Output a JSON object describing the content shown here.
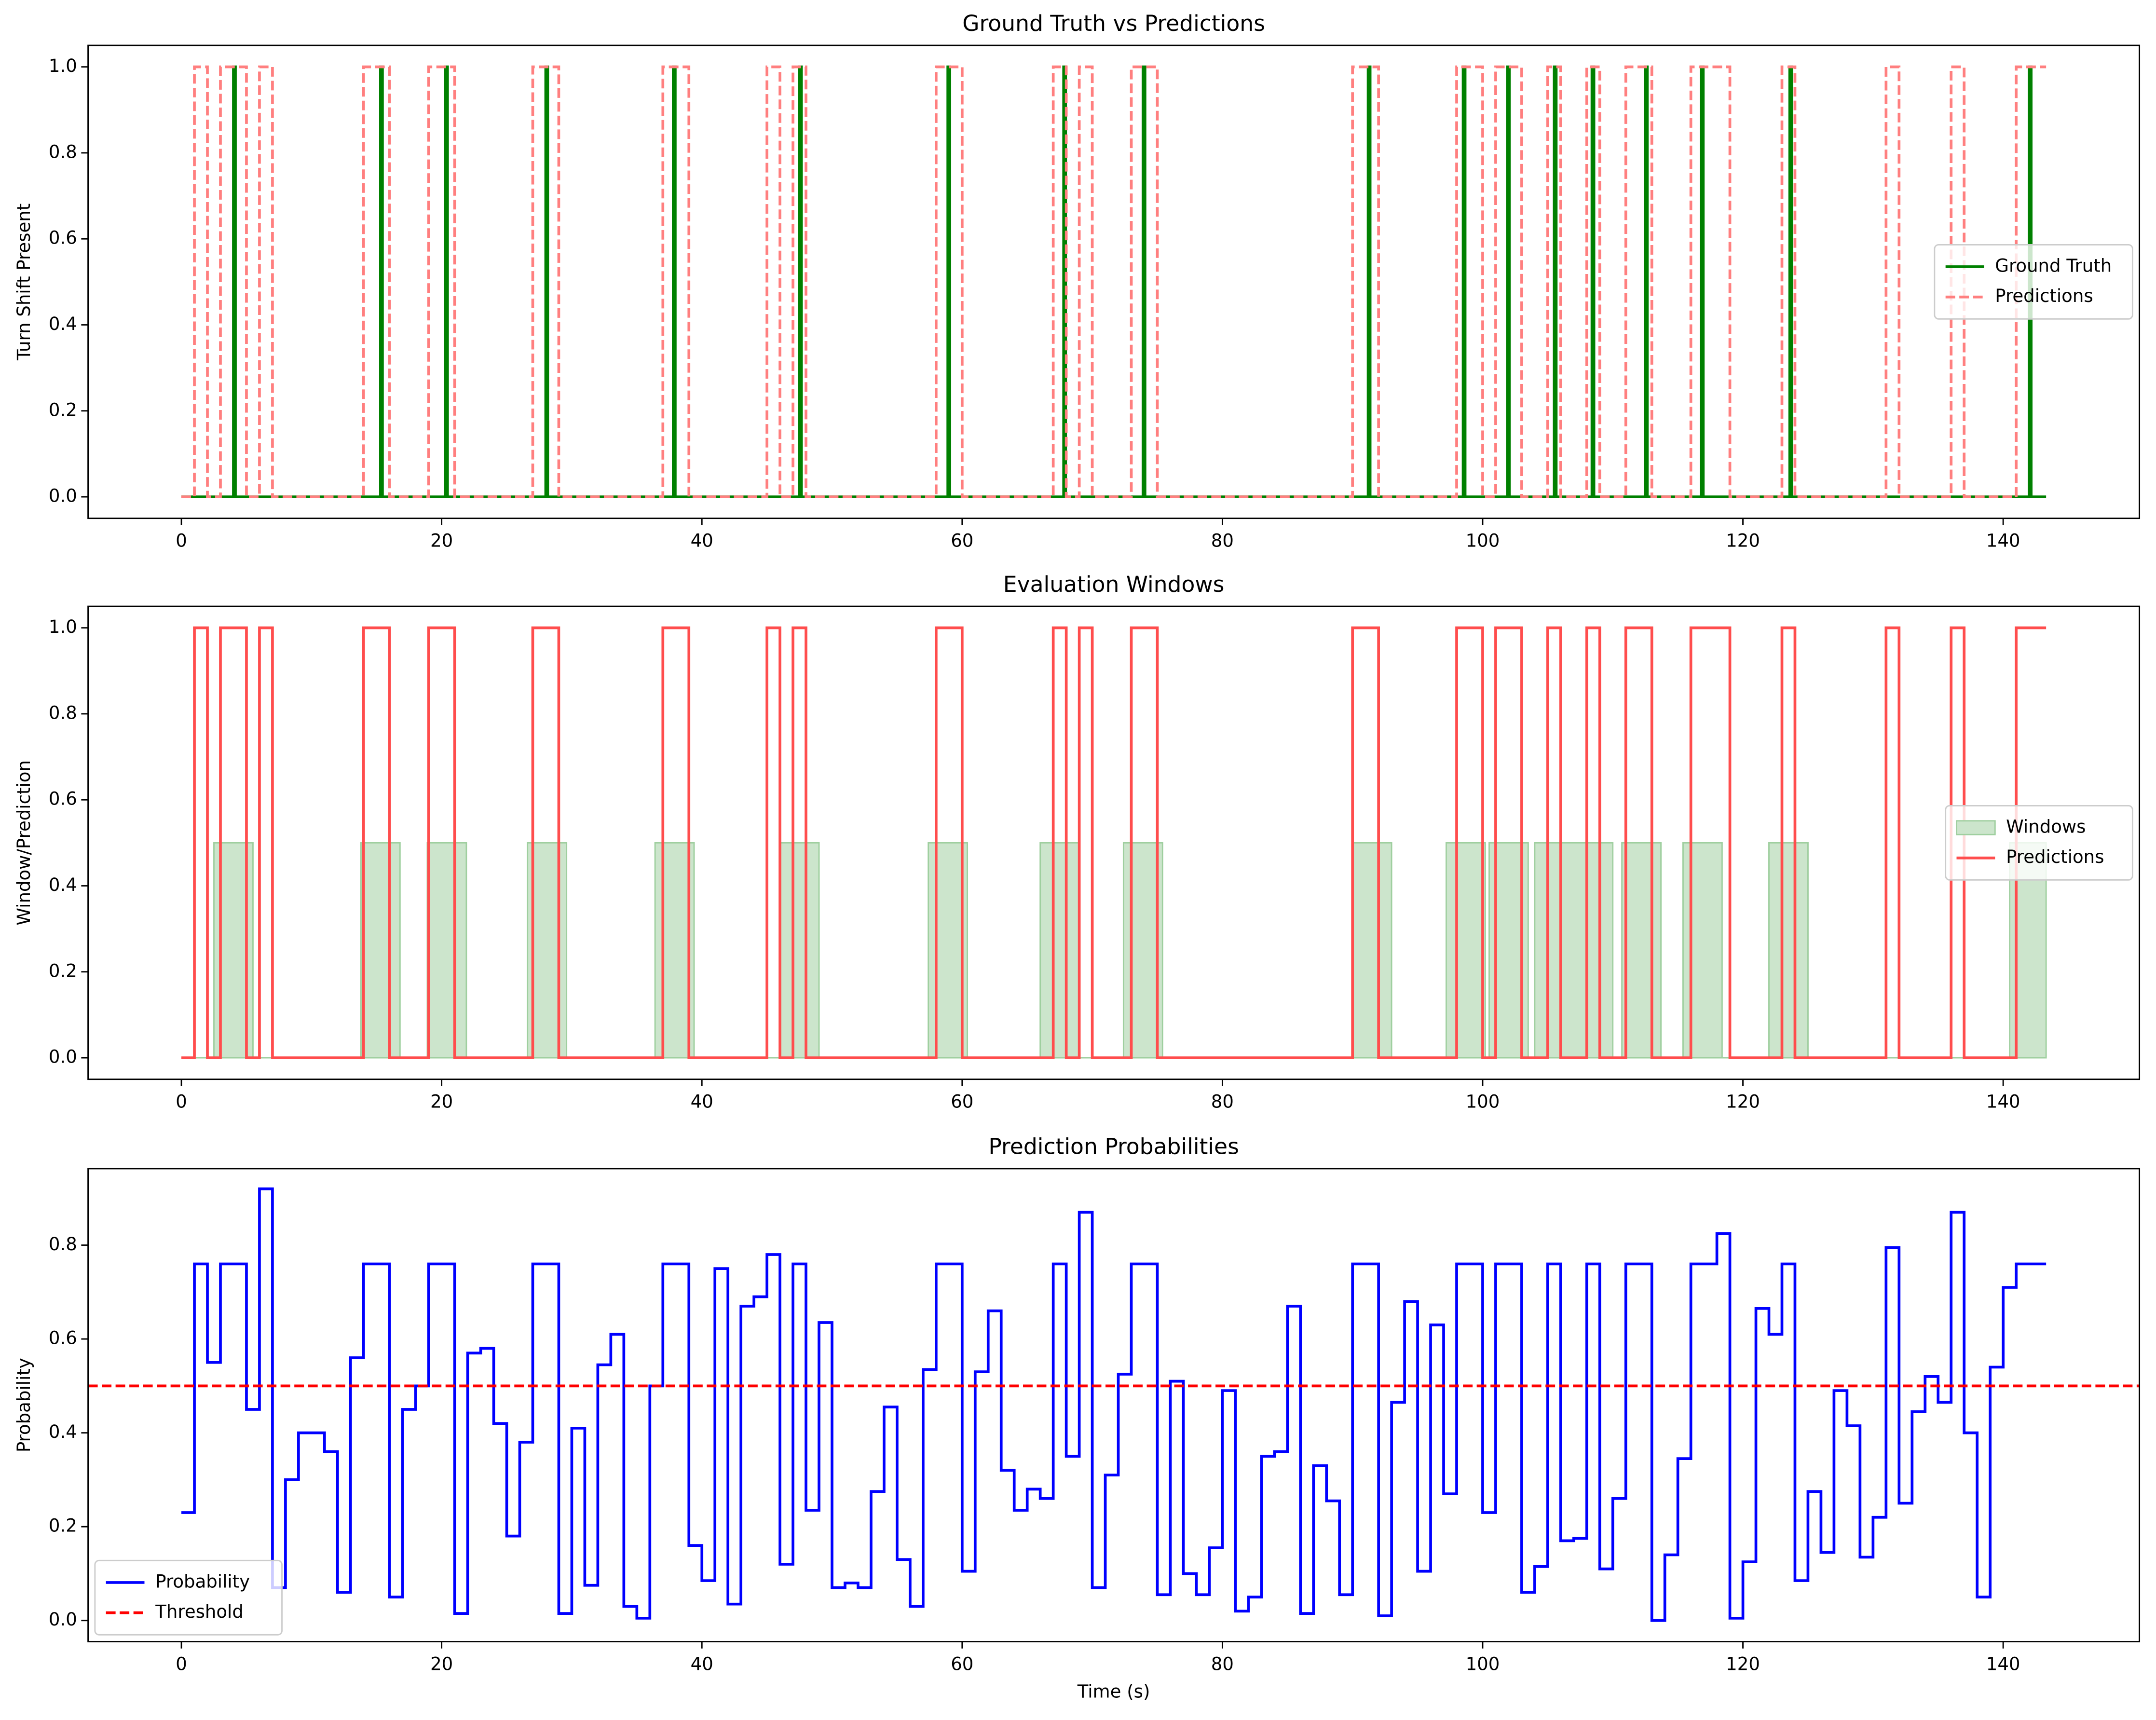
{
  "chart_data": [
    {
      "type": "line",
      "step": "post",
      "title": "Ground Truth vs Predictions",
      "ylabel": "Turn Shift Present",
      "xlim": [
        -7.17,
        150.47
      ],
      "xticks": [
        0,
        20,
        40,
        60,
        80,
        100,
        120,
        140
      ],
      "ylim": [
        -0.05,
        1.05
      ],
      "yticks": [
        {
          "value": 0,
          "label": "0.0"
        },
        0.2,
        0.4,
        0.6,
        0.8,
        {
          "value": 1,
          "label": "1.0"
        }
      ],
      "legend": "center right",
      "series": [
        {
          "name": "Ground Truth",
          "color": "#008000",
          "dash": false,
          "x": [
            0,
            4,
            4.15,
            15.3,
            15.45,
            20.3,
            20.45,
            28,
            28.15,
            37.8,
            37.95,
            47.5,
            47.65,
            58.9,
            59.05,
            67.8,
            67.95,
            73.9,
            74.05,
            91.2,
            91.35,
            98.5,
            98.65,
            101.9,
            102.05,
            105.5,
            105.65,
            108.4,
            108.55,
            112.5,
            112.65,
            116.8,
            116.95,
            123.6,
            123.75,
            142,
            142.15,
            143.3
          ],
          "values": [
            0,
            1,
            0,
            1,
            0,
            1,
            0,
            1,
            0,
            1,
            0,
            1,
            0,
            1,
            0,
            1,
            0,
            1,
            0,
            1,
            0,
            1,
            0,
            1,
            0,
            1,
            0,
            1,
            0,
            1,
            0,
            1,
            0,
            1,
            0,
            1,
            0,
            0
          ]
        },
        {
          "name": "Predictions",
          "color": "#ff7f7f",
          "dash": true,
          "x": [
            0,
            1,
            2,
            3,
            5,
            6,
            7,
            14,
            16,
            19,
            21,
            27,
            29,
            37,
            39,
            45,
            46,
            47,
            48,
            58,
            60,
            67,
            68,
            69,
            70,
            73,
            75,
            90,
            92,
            98,
            100,
            101,
            103,
            105,
            106,
            108,
            109,
            111,
            113,
            116,
            119,
            123,
            124,
            131,
            132,
            136,
            137,
            141,
            143.3
          ],
          "values": [
            0,
            1,
            0,
            1,
            0,
            1,
            0,
            1,
            0,
            1,
            0,
            1,
            0,
            1,
            0,
            1,
            0,
            1,
            0,
            1,
            0,
            1,
            0,
            1,
            0,
            1,
            0,
            1,
            0,
            1,
            0,
            1,
            0,
            1,
            0,
            1,
            0,
            1,
            0,
            1,
            0,
            1,
            0,
            1,
            0,
            1,
            0,
            1,
            1
          ]
        }
      ]
    },
    {
      "type": "line",
      "step": "post",
      "title": "Evaluation Windows",
      "ylabel": "Window/Prediction",
      "xlim": [
        -7.17,
        150.47
      ],
      "xticks": [
        0,
        20,
        40,
        60,
        80,
        100,
        120,
        140
      ],
      "ylim": [
        -0.05,
        1.05
      ],
      "yticks": [
        {
          "value": 0,
          "label": "0.0"
        },
        0.2,
        0.4,
        0.6,
        0.8,
        {
          "value": 1,
          "label": "1.0"
        }
      ],
      "legend": "center right",
      "series": [
        {
          "name": "Windows",
          "color": "#cce5cc",
          "fill": true,
          "x": [
            0,
            2.5,
            5.5,
            13.8,
            16.8,
            18.9,
            21.9,
            26.6,
            29.6,
            36.4,
            39.4,
            46,
            49,
            57.4,
            60.4,
            66,
            69,
            72.4,
            75.4,
            90,
            93,
            97.2,
            100.2,
            100.5,
            103.5,
            104,
            110,
            110.7,
            113.7,
            115.4,
            118.4,
            122,
            125,
            140.5,
            143.3
          ],
          "values": [
            0,
            0.5,
            0,
            0.5,
            0,
            0.5,
            0,
            0.5,
            0,
            0.5,
            0,
            0.5,
            0,
            0.5,
            0,
            0.5,
            0,
            0.5,
            0,
            0.5,
            0,
            0.5,
            0,
            0.5,
            0,
            0.5,
            0,
            0.5,
            0,
            0.5,
            0,
            0.5,
            0,
            0.5,
            0
          ]
        },
        {
          "name": "Predictions",
          "color": "#ff4d4d",
          "dash": false,
          "x": [
            0,
            1,
            2,
            3,
            5,
            6,
            7,
            14,
            16,
            19,
            21,
            27,
            29,
            37,
            39,
            45,
            46,
            47,
            48,
            58,
            60,
            67,
            68,
            69,
            70,
            73,
            75,
            90,
            92,
            98,
            100,
            101,
            103,
            105,
            106,
            108,
            109,
            111,
            113,
            116,
            119,
            123,
            124,
            131,
            132,
            136,
            137,
            141,
            143.3
          ],
          "values": [
            0,
            1,
            0,
            1,
            0,
            1,
            0,
            1,
            0,
            1,
            0,
            1,
            0,
            1,
            0,
            1,
            0,
            1,
            0,
            1,
            0,
            1,
            0,
            1,
            0,
            1,
            0,
            1,
            0,
            1,
            0,
            1,
            0,
            1,
            0,
            1,
            0,
            1,
            0,
            1,
            0,
            1,
            0,
            1,
            0,
            1,
            0,
            1,
            1
          ]
        }
      ]
    },
    {
      "type": "line",
      "step": "post",
      "title": "Prediction Probabilities",
      "ylabel": "Probability",
      "xlabel": "Time (s)",
      "xlim": [
        -7.17,
        150.47
      ],
      "xticks": [
        0,
        20,
        40,
        60,
        80,
        100,
        120,
        140
      ],
      "ylim": [
        -0.045,
        0.963
      ],
      "yticks": [
        {
          "value": 0,
          "label": "0.0"
        },
        0.2,
        0.4,
        0.6,
        0.8
      ],
      "legend": "lower left",
      "series": [
        {
          "name": "Probability",
          "color": "#0000ff",
          "dash": false,
          "x": [
            0,
            1,
            2,
            3,
            5,
            6,
            7,
            8,
            9,
            11,
            12,
            13,
            14,
            16,
            17,
            18,
            19,
            21,
            22,
            23,
            24,
            25,
            26,
            27,
            29,
            30,
            31,
            32,
            33,
            34,
            35,
            36,
            37,
            39,
            40,
            41,
            42,
            43,
            44,
            45,
            46,
            47,
            48,
            49,
            50,
            51,
            52,
            53,
            54,
            55,
            56,
            57,
            58,
            60,
            61,
            62,
            63,
            64,
            65,
            66,
            67,
            68,
            69,
            70,
            71,
            72,
            73,
            75,
            76,
            77,
            78,
            79,
            80,
            81,
            82,
            83,
            84,
            85,
            86,
            87,
            88,
            89,
            90,
            92,
            93,
            94,
            95,
            96,
            97,
            98,
            100,
            101,
            103,
            104,
            105,
            106,
            107,
            108,
            109,
            110,
            111,
            113,
            114,
            115,
            116,
            118,
            119,
            120,
            121,
            122,
            123,
            124,
            125,
            126,
            127,
            128,
            129,
            130,
            131,
            132,
            133,
            134,
            135,
            136,
            137,
            138,
            139,
            140,
            141,
            143.3
          ],
          "values": [
            0.23,
            0.76,
            0.55,
            0.76,
            0.45,
            0.92,
            0.07,
            0.3,
            0.4,
            0.36,
            0.06,
            0.56,
            0.76,
            0.05,
            0.45,
            0.5,
            0.76,
            0.015,
            0.57,
            0.58,
            0.42,
            0.18,
            0.38,
            0.76,
            0.015,
            0.41,
            0.075,
            0.545,
            0.61,
            0.03,
            0.005,
            0.5,
            0.76,
            0.16,
            0.085,
            0.75,
            0.035,
            0.67,
            0.69,
            0.78,
            0.12,
            0.76,
            0.235,
            0.635,
            0.07,
            0.08,
            0.07,
            0.275,
            0.455,
            0.13,
            0.03,
            0.535,
            0.76,
            0.105,
            0.53,
            0.66,
            0.32,
            0.235,
            0.28,
            0.26,
            0.76,
            0.35,
            0.87,
            0.07,
            0.31,
            0.525,
            0.76,
            0.055,
            0.51,
            0.1,
            0.055,
            0.155,
            0.49,
            0.02,
            0.05,
            0.35,
            0.36,
            0.67,
            0.015,
            0.33,
            0.255,
            0.055,
            0.76,
            0.01,
            0.465,
            0.68,
            0.105,
            0.63,
            0.27,
            0.76,
            0.23,
            0.76,
            0.06,
            0.115,
            0.76,
            0.17,
            0.175,
            0.76,
            0.11,
            0.26,
            0.76,
            0.0,
            0.14,
            0.345,
            0.76,
            0.825,
            0.005,
            0.125,
            0.665,
            0.61,
            0.76,
            0.085,
            0.275,
            0.145,
            0.49,
            0.415,
            0.135,
            0.22,
            0.795,
            0.25,
            0.445,
            0.52,
            0.465,
            0.87,
            0.4,
            0.05,
            0.54,
            0.71,
            0.76,
            0.76
          ]
        }
      ],
      "hlines": [
        {
          "name": "Threshold",
          "color": "#ff0000",
          "dash": true,
          "value": 0.5
        }
      ]
    }
  ]
}
